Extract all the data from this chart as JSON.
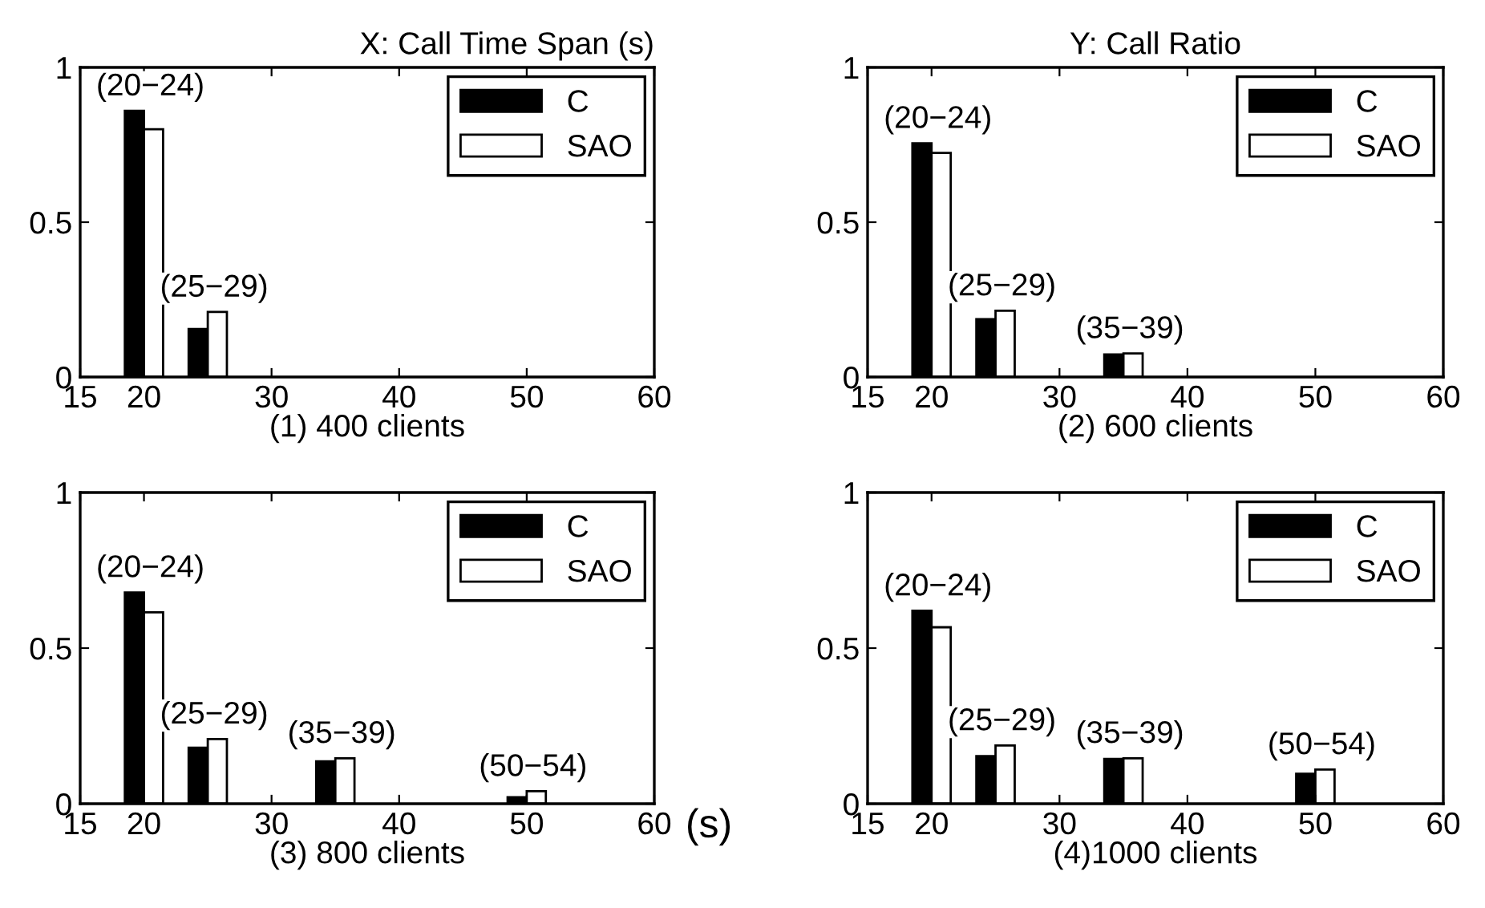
{
  "chart_data": [
    {
      "type": "bar",
      "title": "X: Call Time Span (s)",
      "xlabel": "(1) 400 clients",
      "x": [
        20,
        25
      ],
      "series": [
        {
          "name": "C",
          "color": "#000000",
          "values": [
            0.86,
            0.155
          ]
        },
        {
          "name": "SAO",
          "color": "#ffffff",
          "values": [
            0.8,
            0.21
          ]
        }
      ],
      "xlim": [
        15,
        60
      ],
      "xticks": [
        15,
        20,
        30,
        40,
        50,
        60
      ],
      "ylim": [
        0,
        1
      ],
      "yticks": [
        0,
        0.5,
        1
      ],
      "legend": "top right",
      "grid": false,
      "annotations": [
        "(20−24)",
        "(25−29)"
      ]
    },
    {
      "type": "bar",
      "title": "Y: Call Ratio",
      "xlabel": "(2) 600 clients",
      "x": [
        20,
        25,
        35
      ],
      "series": [
        {
          "name": "C",
          "color": "#000000",
          "values": [
            0.755,
            0.187,
            0.073
          ]
        },
        {
          "name": "SAO",
          "color": "#ffffff",
          "values": [
            0.724,
            0.214,
            0.076
          ]
        }
      ],
      "xlim": [
        15,
        60
      ],
      "xticks": [
        15,
        20,
        30,
        40,
        50,
        60
      ],
      "ylim": [
        0,
        1
      ],
      "yticks": [
        0,
        0.5,
        1
      ],
      "legend": "top right",
      "grid": false,
      "annotations": [
        "(20−24)",
        "(25−29)",
        "(35−39)"
      ]
    },
    {
      "type": "bar",
      "xlabel": "(3) 800 clients",
      "x": [
        20,
        25,
        35,
        50
      ],
      "series": [
        {
          "name": "C",
          "color": "#000000",
          "values": [
            0.679,
            0.18,
            0.136,
            0.021
          ]
        },
        {
          "name": "SAO",
          "color": "#ffffff",
          "values": [
            0.615,
            0.208,
            0.146,
            0.04
          ]
        }
      ],
      "xlim": [
        15,
        60
      ],
      "xticks": [
        15,
        20,
        30,
        40,
        50,
        60
      ],
      "ylim": [
        0,
        1
      ],
      "yticks": [
        0,
        0.5,
        1
      ],
      "legend": "top right",
      "grid": false,
      "annotations": [
        "(20−24)",
        "(25−29)",
        "(35−39)",
        "(50−54)",
        "(s)"
      ]
    },
    {
      "type": "bar",
      "xlabel": "(4)1000 clients",
      "x": [
        20,
        25,
        35,
        50
      ],
      "series": [
        {
          "name": "C",
          "color": "#000000",
          "values": [
            0.62,
            0.153,
            0.144,
            0.096
          ]
        },
        {
          "name": "SAO",
          "color": "#ffffff",
          "values": [
            0.567,
            0.187,
            0.146,
            0.11
          ]
        }
      ],
      "xlim": [
        15,
        60
      ],
      "xticks": [
        15,
        20,
        30,
        40,
        50,
        60
      ],
      "ylim": [
        0,
        1
      ],
      "yticks": [
        0,
        0.5,
        1
      ],
      "legend": "top right",
      "grid": false,
      "annotations": [
        "(20−24)",
        "(25−29)",
        "(35−39)",
        "(50−54)"
      ]
    }
  ]
}
